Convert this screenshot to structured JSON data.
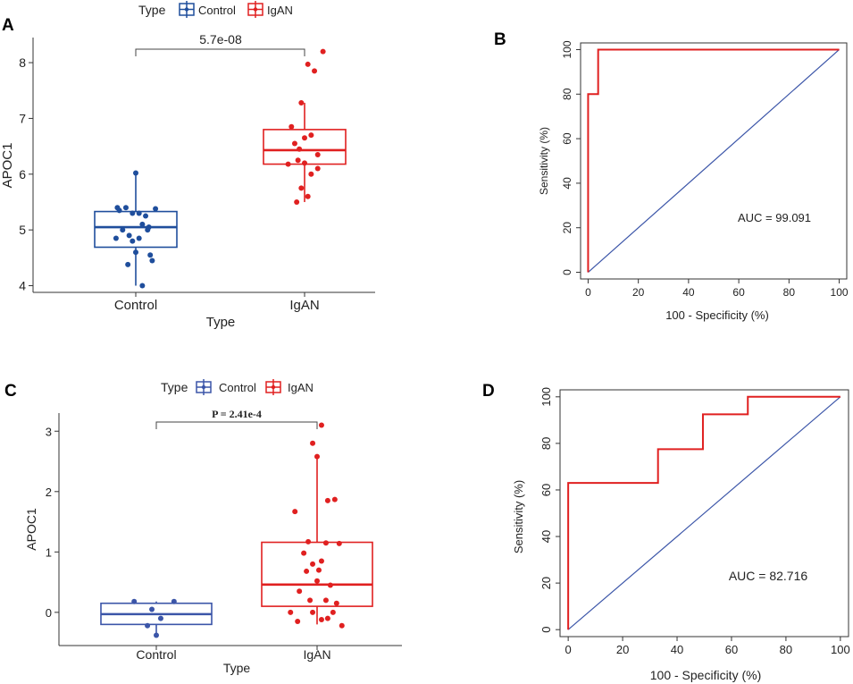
{
  "colors": {
    "control": "#1f4e9c",
    "igan": "#e02020",
    "diag": "#3b55a8",
    "roc": "#e02020",
    "axis": "#333333"
  },
  "chart_data": [
    {
      "panel": "A",
      "type": "box",
      "legend": {
        "title": "Type",
        "entries": [
          "Control",
          "IgAN"
        ]
      },
      "categories": [
        "Control",
        "IgAN"
      ],
      "xlabel": "Type",
      "ylabel": "APOC1",
      "ylim": [
        3.88,
        8.45
      ],
      "yticks": [
        4,
        5,
        6,
        7,
        8
      ],
      "pvalue": "5.7e-08",
      "boxes": [
        {
          "group": "Control",
          "min": 4.0,
          "q1": 4.69,
          "median": 5.05,
          "q3": 5.33,
          "max": 6.02
        },
        {
          "group": "IgAN",
          "min": 5.5,
          "q1": 6.18,
          "median": 6.43,
          "q3": 6.8,
          "max": 7.28
        }
      ],
      "points": [
        {
          "group": "Control",
          "jitter": [
            -0.3,
            -0.25,
            -0.15,
            -0.05,
            0.05,
            0.15,
            0.3,
            0.25,
            -0.2,
            0.1,
            0.0,
            -0.1,
            0.2,
            -0.28,
            0.05,
            -0.12,
            0.22,
            0.18,
            -0.05,
            0.0,
            0.1
          ],
          "values": [
            4.85,
            5.35,
            5.4,
            5.3,
            5.3,
            5.25,
            5.38,
            4.45,
            5.0,
            5.1,
            4.6,
            4.9,
            5.05,
            5.4,
            4.85,
            4.38,
            4.55,
            5.0,
            4.8,
            6.02,
            4.0
          ]
        },
        {
          "group": "IgAN",
          "jitter": [
            0.05,
            0.15,
            0.28,
            -0.05,
            -0.2,
            0.0,
            -0.15,
            0.1,
            -0.08,
            0.2,
            0.0,
            -0.1,
            -0.25,
            0.1,
            -0.05,
            0.2,
            0.05,
            -0.12
          ],
          "values": [
            7.97,
            7.85,
            8.2,
            7.28,
            6.85,
            6.65,
            6.55,
            6.7,
            6.45,
            6.35,
            6.2,
            6.25,
            6.18,
            6.0,
            5.75,
            6.1,
            5.6,
            5.5
          ]
        }
      ]
    },
    {
      "panel": "B",
      "type": "line",
      "xlabel": "100 - Specificity (%)",
      "ylabel": "Sensitivity (%)",
      "xlim": [
        -3,
        103
      ],
      "ylim": [
        -3,
        103
      ],
      "xticks": [
        0,
        20,
        40,
        60,
        80,
        100
      ],
      "yticks": [
        0,
        20,
        40,
        60,
        80,
        100
      ],
      "annotation": "AUC = 99.091",
      "roc": {
        "x": [
          0,
          0,
          0,
          4,
          4,
          100
        ],
        "y": [
          0,
          80,
          80,
          80,
          100,
          100
        ]
      },
      "diagonal": {
        "x": [
          0,
          100
        ],
        "y": [
          0,
          100
        ]
      }
    },
    {
      "panel": "C",
      "type": "box",
      "legend": {
        "title": "Type",
        "entries": [
          "Control",
          "IgAN"
        ]
      },
      "categories": [
        "Control",
        "IgAN"
      ],
      "xlabel": "Type",
      "ylabel": "APOC1",
      "ylim": [
        -0.55,
        3.3
      ],
      "yticks": [
        0,
        1,
        2,
        3
      ],
      "pvalue": "P = 2.41e-4",
      "boxes": [
        {
          "group": "Control",
          "min": -0.38,
          "q1": -0.2,
          "median": -0.03,
          "q3": 0.15,
          "max": 0.18
        },
        {
          "group": "IgAN",
          "min": -0.2,
          "q1": 0.1,
          "median": 0.46,
          "q3": 1.16,
          "max": 2.58
        }
      ],
      "points": [
        {
          "group": "Control",
          "jitter": [
            -0.25,
            0.2,
            -0.05,
            0.05,
            -0.1,
            0.0
          ],
          "values": [
            0.18,
            0.18,
            0.05,
            -0.1,
            -0.22,
            -0.38
          ]
        },
        {
          "group": "IgAN",
          "jitter": [
            0.05,
            -0.05,
            0.0,
            0.2,
            -0.25,
            0.12,
            -0.1,
            0.1,
            0.25,
            -0.15,
            0.05,
            -0.05,
            -0.12,
            0.0,
            0.15,
            -0.2,
            0.1,
            -0.08,
            0.22,
            0.18,
            -0.3,
            -0.05,
            0.12,
            0.05,
            -0.22,
            0.28,
            0.02
          ],
          "values": [
            3.1,
            2.8,
            2.58,
            1.87,
            1.67,
            1.85,
            1.17,
            1.15,
            1.14,
            0.98,
            0.85,
            0.8,
            0.68,
            0.52,
            0.45,
            0.35,
            0.2,
            0.2,
            0.15,
            0.0,
            0.0,
            0.0,
            -0.1,
            -0.12,
            -0.15,
            -0.22,
            0.7
          ]
        }
      ]
    },
    {
      "panel": "D",
      "type": "line",
      "xlabel": "100 - Specificity (%)",
      "ylabel": "Sensitivity (%)",
      "xlim": [
        -3,
        103
      ],
      "ylim": [
        -3,
        103
      ],
      "xticks": [
        0,
        20,
        40,
        60,
        80,
        100
      ],
      "yticks": [
        0,
        20,
        40,
        60,
        80,
        100
      ],
      "annotation": "AUC = 82.716",
      "roc": {
        "x": [
          0,
          0,
          33,
          33,
          49.5,
          49.5,
          66,
          66,
          100
        ],
        "y": [
          0,
          63,
          63,
          77.5,
          77.5,
          92.5,
          92.5,
          100,
          100
        ]
      },
      "diagonal": {
        "x": [
          0,
          100
        ],
        "y": [
          0,
          100
        ]
      }
    }
  ]
}
